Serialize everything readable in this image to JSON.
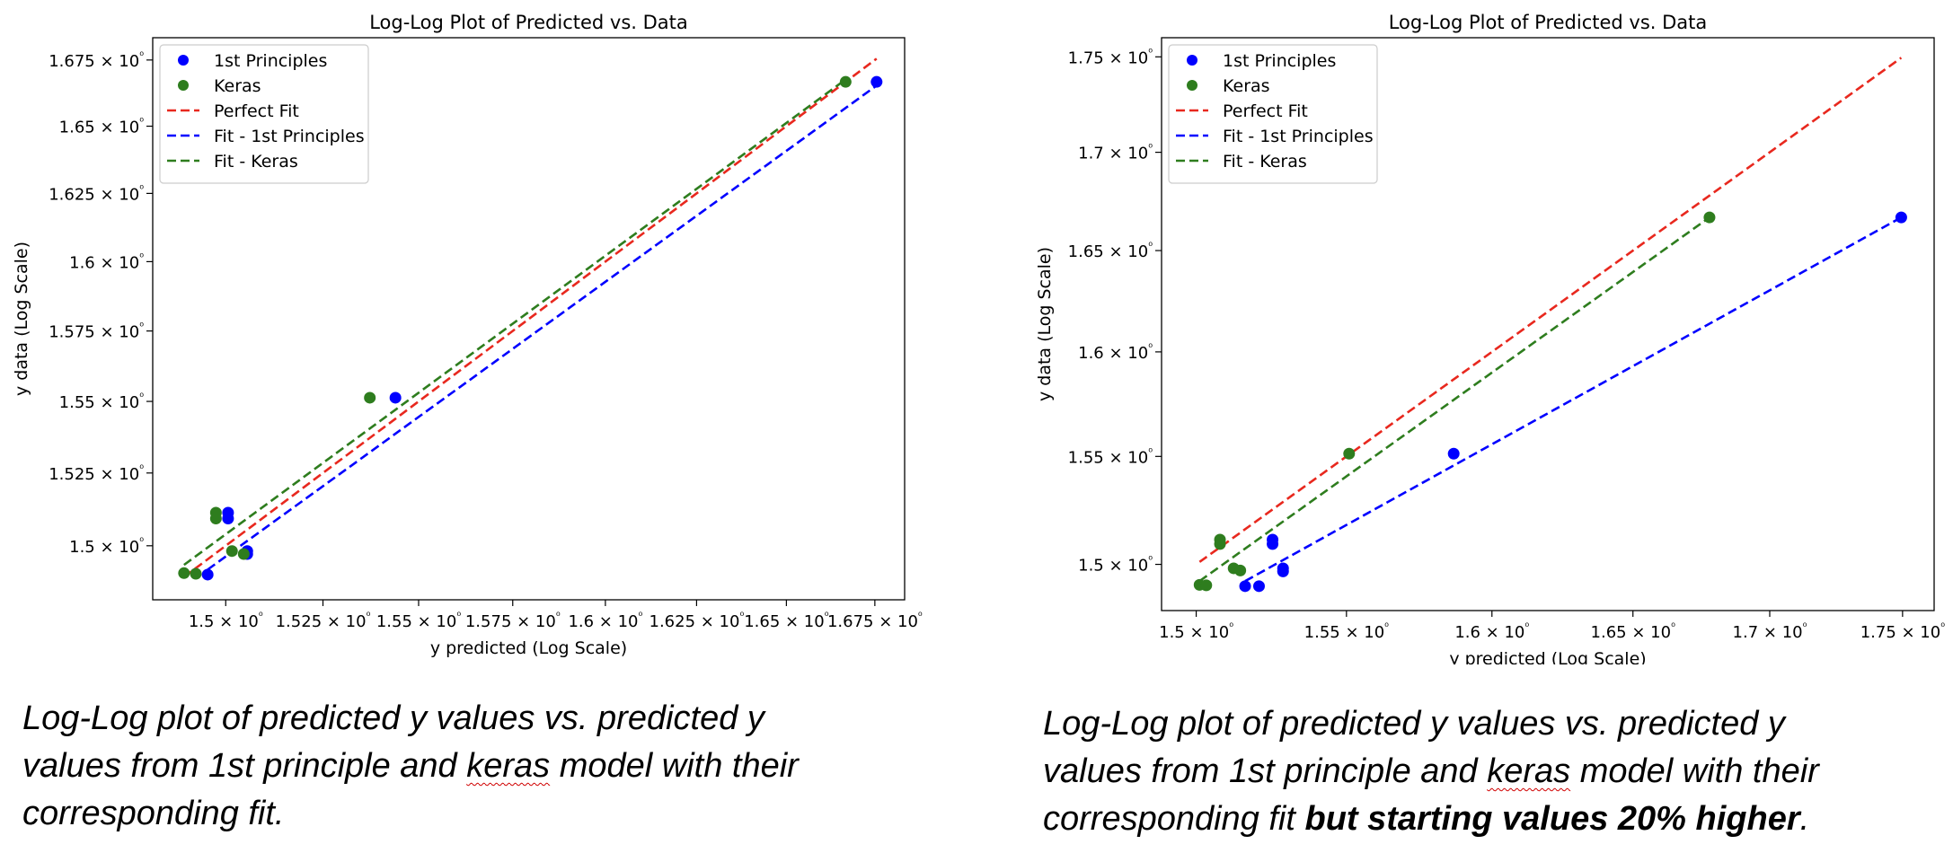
{
  "chart_data": [
    {
      "type": "scatter",
      "title": "Log-Log Plot of Predicted vs. Data",
      "xlabel": "y predicted (Log Scale)",
      "ylabel": "y data (Log Scale)",
      "xscale": "log",
      "yscale": "log",
      "xlim": [
        1.4815,
        1.6835
      ],
      "ylim": [
        1.4817,
        1.6835
      ],
      "xticks": [
        1.5,
        1.525,
        1.55,
        1.575,
        1.6,
        1.625,
        1.65,
        1.675
      ],
      "xtick_labels": [
        "1.5 × 10⁰",
        "1.525 × 10⁰",
        "1.55 × 10⁰",
        "1.575 × 10⁰",
        "1.6 × 10⁰",
        "1.625 × 10⁰",
        "1.65 × 10⁰",
        "1.675 × 10⁰"
      ],
      "yticks": [
        1.5,
        1.525,
        1.55,
        1.575,
        1.6,
        1.625,
        1.65,
        1.675
      ],
      "ytick_labels": [
        "1.5 × 10⁰",
        "1.525 × 10⁰",
        "1.55 × 10⁰",
        "1.575 × 10⁰",
        "1.6 × 10⁰",
        "1.625 × 10⁰",
        "1.65 × 10⁰",
        "1.675 × 10⁰"
      ],
      "legend_position": "top-left",
      "legend": [
        {
          "label": "1st Principles",
          "kind": "marker",
          "color": "#0000ff"
        },
        {
          "label": "Keras",
          "kind": "marker",
          "color": "#2e7d1e"
        },
        {
          "label": "Perfect Fit",
          "kind": "dashed",
          "color": "#e8281e"
        },
        {
          "label": "Fit - 1st Principles",
          "kind": "dashed",
          "color": "#0000ff"
        },
        {
          "label": "Fit - Keras",
          "kind": "dashed",
          "color": "#2e7d1e"
        }
      ],
      "series": [
        {
          "name": "1st Principles",
          "kind": "scatter",
          "color": "#0000ff",
          "x": [
            1.4954,
            1.5006,
            1.5006,
            1.5055,
            1.5055,
            1.5439,
            1.6755
          ],
          "y": [
            1.4902,
            1.5093,
            1.5113,
            1.4982,
            1.4972,
            1.5513,
            1.6667
          ]
        },
        {
          "name": "Keras",
          "kind": "scatter",
          "color": "#2e7d1e",
          "x": [
            1.4894,
            1.4924,
            1.4975,
            1.4975,
            1.5016,
            1.5046,
            1.5372,
            1.6667
          ],
          "y": [
            1.4907,
            1.4905,
            1.5093,
            1.5113,
            1.4982,
            1.4972,
            1.5513,
            1.6667
          ]
        },
        {
          "name": "Perfect Fit",
          "kind": "line",
          "color": "#e8281e",
          "x": [
            1.4894,
            1.6755
          ],
          "y": [
            1.4894,
            1.6755
          ]
        },
        {
          "name": "Fit - 1st Principles",
          "kind": "line",
          "color": "#0000ff",
          "x": [
            1.4954,
            1.6755
          ],
          "y": [
            1.4919,
            1.6653
          ]
        },
        {
          "name": "Fit - Keras",
          "kind": "line",
          "color": "#2e7d1e",
          "x": [
            1.4894,
            1.6667
          ],
          "y": [
            1.4935,
            1.6676
          ]
        }
      ]
    },
    {
      "type": "scatter",
      "title": "Log-Log Plot of Predicted vs. Data",
      "xlabel": "y predicted (Log Scale)",
      "ylabel": "y data (Log Scale)",
      "xscale": "log",
      "yscale": "log",
      "xlim": [
        1.4887,
        1.7621
      ],
      "ylim": [
        1.4791,
        1.7602
      ],
      "xticks": [
        1.5,
        1.55,
        1.6,
        1.65,
        1.7,
        1.75
      ],
      "xtick_labels": [
        "1.5 × 10⁰",
        "1.55 × 10⁰",
        "1.6 × 10⁰",
        "1.65 × 10⁰",
        "1.7 × 10⁰",
        "1.75 × 10⁰"
      ],
      "yticks": [
        1.5,
        1.55,
        1.6,
        1.65,
        1.7,
        1.75
      ],
      "ytick_labels": [
        "1.5 × 10⁰",
        "1.55 × 10⁰",
        "1.6 × 10⁰",
        "1.65 × 10⁰",
        "1.7 × 10⁰",
        "1.75 × 10⁰"
      ],
      "legend_position": "top-left",
      "legend": [
        {
          "label": "1st Principles",
          "kind": "marker",
          "color": "#0000ff"
        },
        {
          "label": "Keras",
          "kind": "marker",
          "color": "#2e7d1e"
        },
        {
          "label": "Perfect Fit",
          "kind": "dashed",
          "color": "#e8281e"
        },
        {
          "label": "Fit - 1st Principles",
          "kind": "dashed",
          "color": "#0000ff"
        },
        {
          "label": "Fit - Keras",
          "kind": "dashed",
          "color": "#2e7d1e"
        }
      ],
      "series": [
        {
          "name": "1st Principles",
          "kind": "scatter",
          "color": "#0000ff",
          "x": [
            1.5161,
            1.5207,
            1.5252,
            1.5252,
            1.5287,
            1.5287,
            1.5867,
            1.7495
          ],
          "y": [
            1.4901,
            1.4901,
            1.5093,
            1.5113,
            1.4982,
            1.4968,
            1.5513,
            1.6667
          ]
        },
        {
          "name": "Keras",
          "kind": "scatter",
          "color": "#2e7d1e",
          "x": [
            1.5011,
            1.5033,
            1.5078,
            1.5078,
            1.5123,
            1.5145,
            1.5509,
            1.6778
          ],
          "y": [
            1.4907,
            1.4905,
            1.5093,
            1.5113,
            1.4982,
            1.4972,
            1.5513,
            1.6667
          ]
        },
        {
          "name": "Perfect Fit",
          "kind": "line",
          "color": "#e8281e",
          "x": [
            1.5011,
            1.7495
          ],
          "y": [
            1.5011,
            1.7495
          ]
        },
        {
          "name": "Fit - 1st Principles",
          "kind": "line",
          "color": "#0000ff",
          "x": [
            1.5161,
            1.7495
          ],
          "y": [
            1.4924,
            1.6667
          ]
        },
        {
          "name": "Fit - Keras",
          "kind": "line",
          "color": "#2e7d1e",
          "x": [
            1.5011,
            1.6778
          ],
          "y": [
            1.4924,
            1.6667
          ]
        }
      ]
    }
  ],
  "captions": {
    "left": {
      "line1": "Log-Log plot of predicted y values vs. predicted y",
      "line2_pre": "values from 1st principle and ",
      "line2_mark": "keras",
      "line2_post": " model with their",
      "line3": "corresponding fit."
    },
    "right": {
      "line1": "Log-Log plot of predicted y values vs. predicted y",
      "line2_pre": "values from 1st principle and ",
      "line2_mark": "keras",
      "line2_post": " model with their",
      "line3_pre": "corresponding fit ",
      "line3_bold": "but starting values 20% higher",
      "line3_post": "."
    }
  }
}
